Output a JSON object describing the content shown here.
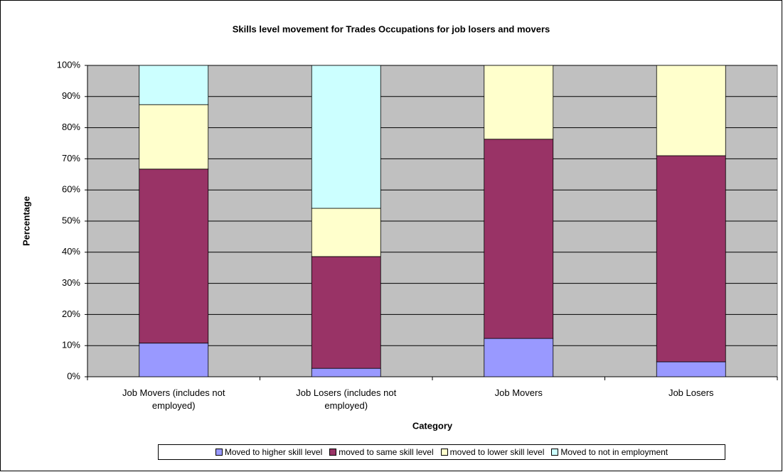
{
  "chart_data": {
    "type": "stacked_bar",
    "title": "Skills level movement for Trades Occupations for job losers and movers",
    "x_label": "Category",
    "y_label": "Percentage",
    "categories": [
      "Job Movers (includes not employed)",
      "Job Losers (includes not employed)",
      "Job Movers",
      "Job Losers"
    ],
    "series": [
      {
        "name": "Moved to higher skill level",
        "color": "#9999ff",
        "values": [
          10.8,
          2.7,
          12.3,
          4.8
        ]
      },
      {
        "name": "moved to same skill level",
        "color": "#993366",
        "values": [
          55.9,
          35.9,
          64.0,
          66.2
        ]
      },
      {
        "name": "moved to lower skill level",
        "color": "#ffffcc",
        "values": [
          20.7,
          15.5,
          23.7,
          29.0
        ]
      },
      {
        "name": "Moved to not in employment",
        "color": "#ccffff",
        "values": [
          12.6,
          45.9,
          0,
          0
        ]
      }
    ],
    "ylim": [
      0,
      100
    ],
    "yticks": [
      {
        "value": 0,
        "label": "0%"
      },
      {
        "value": 10,
        "label": "10%"
      },
      {
        "value": 20,
        "label": "20%"
      },
      {
        "value": 30,
        "label": "30%"
      },
      {
        "value": 40,
        "label": "40%"
      },
      {
        "value": 50,
        "label": "50%"
      },
      {
        "value": 60,
        "label": "60%"
      },
      {
        "value": 70,
        "label": "70%"
      },
      {
        "value": 80,
        "label": "80%"
      },
      {
        "value": 90,
        "label": "90%"
      },
      {
        "value": 100,
        "label": "100%"
      }
    ],
    "grid": true,
    "legend": "bottom",
    "plot_background": "#c0c0c0"
  }
}
